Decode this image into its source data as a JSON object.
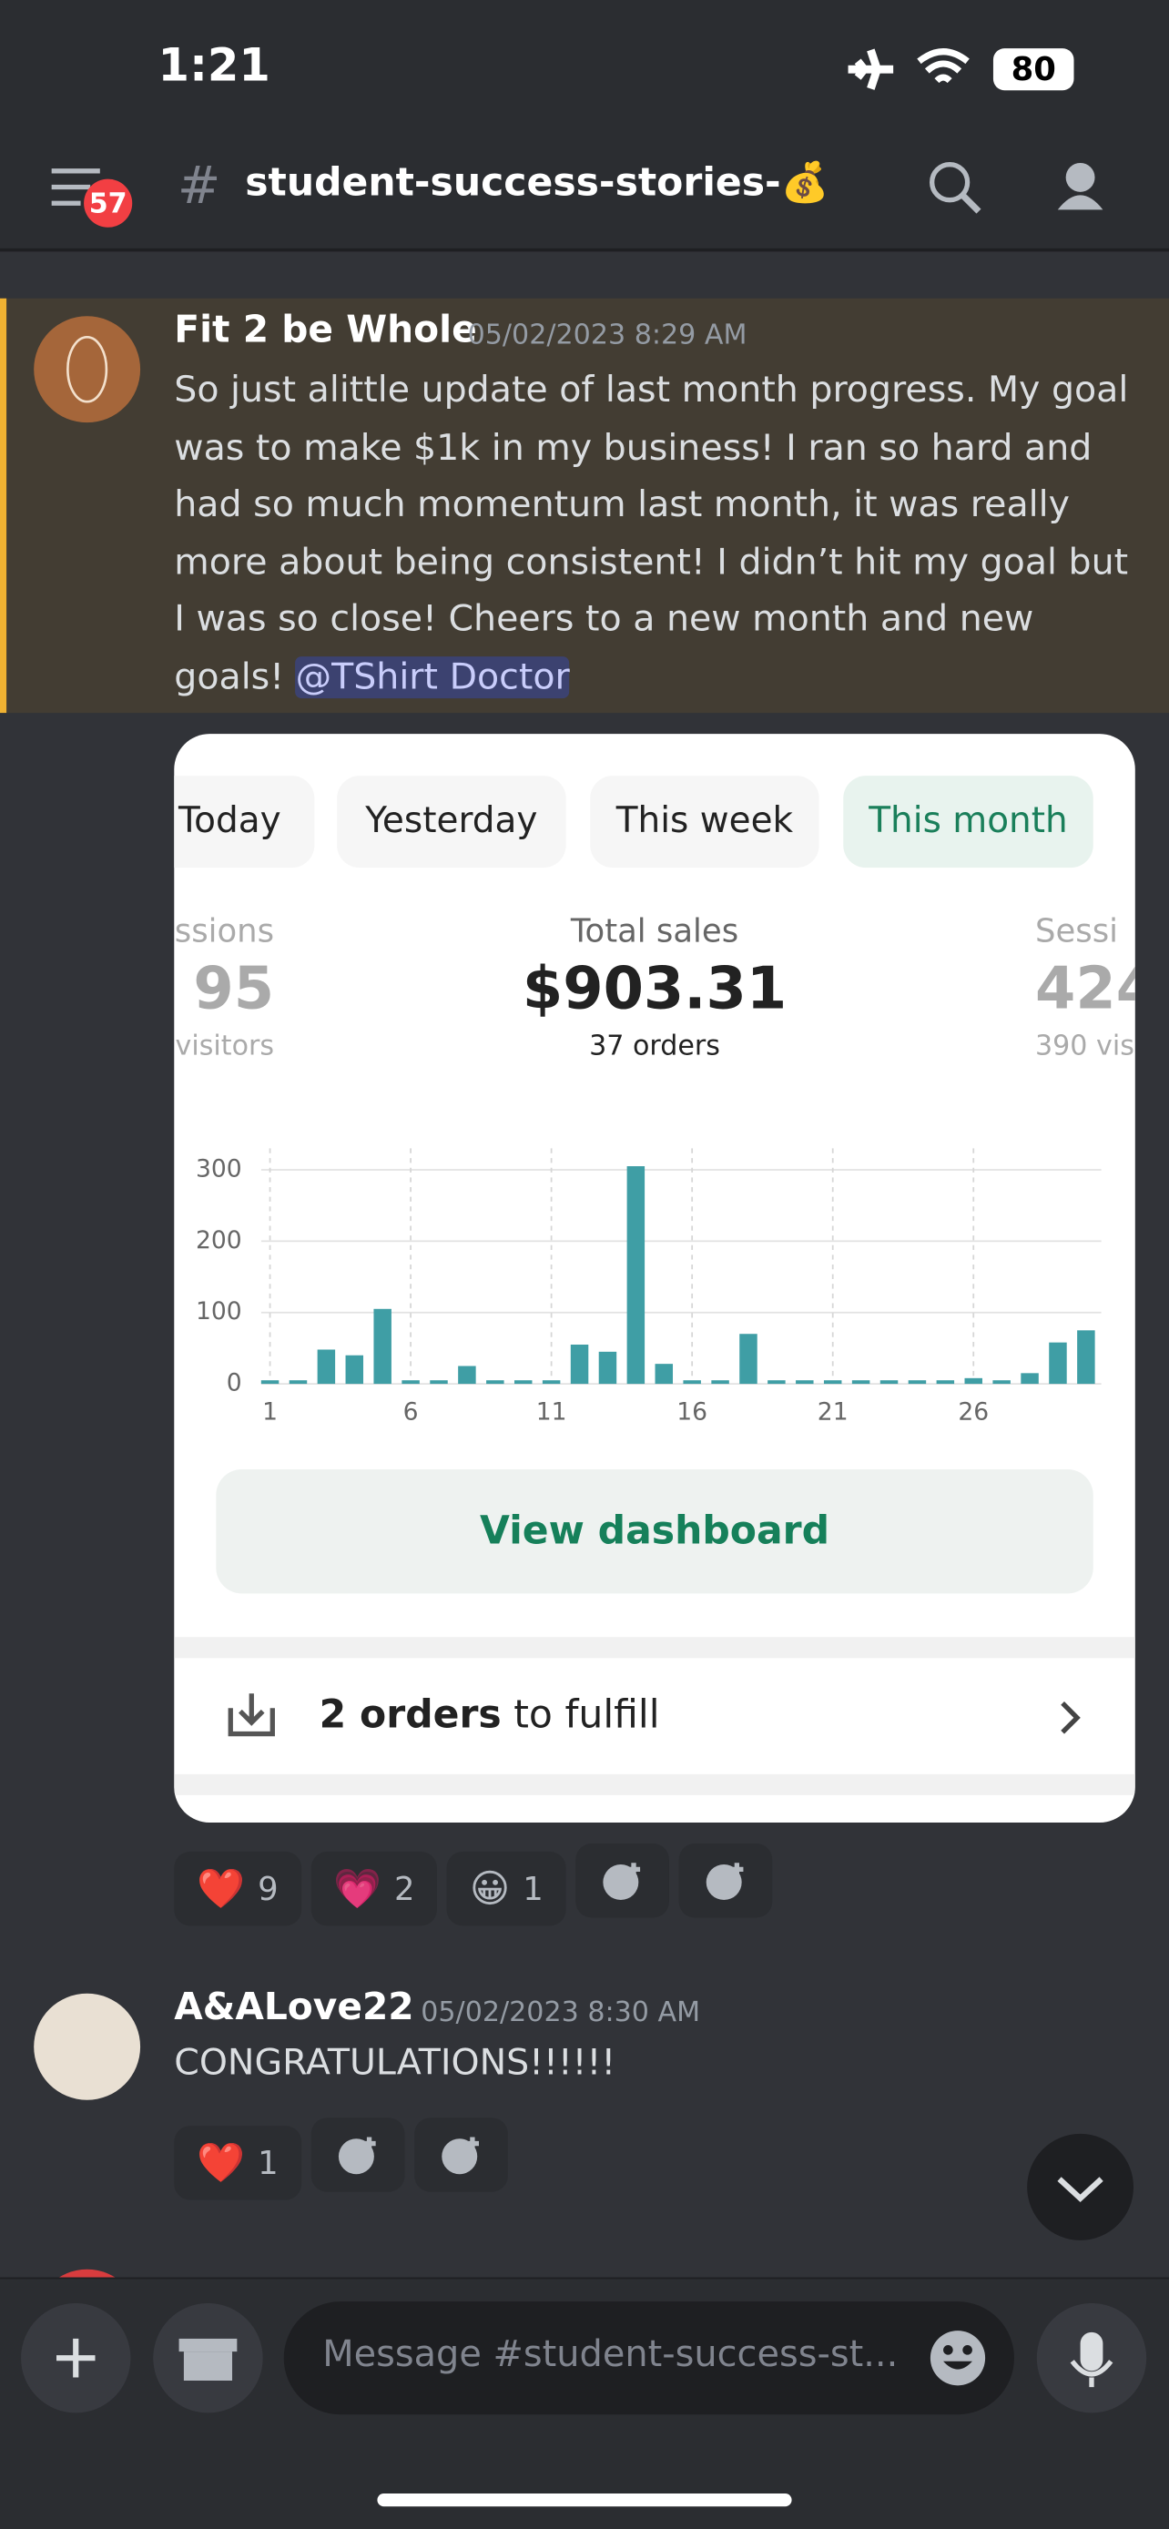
{
  "status_bar": {
    "time": "1:21",
    "battery": "80"
  },
  "header": {
    "badge": "57",
    "hash": "#",
    "channel": "student-success-stories-💰"
  },
  "messages": [
    {
      "author": "Fit 2 be Whole",
      "timestamp": "05/02/2023 8:29 AM",
      "text": "So just alittle update of last month progress. My goal was to make $1k in my business! I ran so hard and had so much momentum last month, it was really more about being consistent!  I didn’t hit my goal but I was so close! Cheers to a new month and new goals! ",
      "mention": "@TShirt Doctor",
      "reactions": [
        {
          "emoji": "❤️",
          "count": 9
        },
        {
          "emoji": "💗",
          "count": 2
        },
        {
          "emoji": "😀",
          "count": 1
        }
      ]
    },
    {
      "author": "A&ALove22",
      "timestamp": "05/02/2023 8:30 AM",
      "text": "CONGRATULATIONS!!!!!!",
      "reactions": [
        {
          "emoji": "❤️",
          "count": 1
        }
      ]
    }
  ],
  "card": {
    "tabs": [
      "Today",
      "Yesterday",
      "This week",
      "This month"
    ],
    "stats": [
      {
        "label": "ssions",
        "value": "95",
        "sub": "visitors"
      },
      {
        "label": "Total sales",
        "value": "$903.31",
        "sub": "37 orders"
      },
      {
        "label": "Sessi",
        "value": "424",
        "sub": "390 vis"
      }
    ],
    "chart_data": {
      "type": "bar",
      "color": "#3f9ea5",
      "grid": true,
      "x": [
        1,
        2,
        3,
        4,
        5,
        6,
        7,
        8,
        9,
        10,
        11,
        12,
        13,
        14,
        15,
        16,
        17,
        18,
        19,
        20,
        21,
        22,
        23,
        24,
        25,
        26,
        27,
        28,
        29,
        30
      ],
      "values": [
        5,
        5,
        48,
        40,
        105,
        5,
        5,
        25,
        5,
        5,
        5,
        55,
        45,
        305,
        28,
        5,
        5,
        70,
        5,
        5,
        5,
        5,
        5,
        5,
        5,
        8,
        5,
        15,
        58,
        75
      ],
      "xlim": [
        0,
        31
      ],
      "xticks": [
        1,
        6,
        11,
        16,
        21,
        26
      ],
      "ylim": [
        0,
        330
      ],
      "yticks": [
        0,
        100,
        200,
        300
      ]
    },
    "button": "View dashboard",
    "fulfill_bold": "2 orders",
    "fulfill_rest": "to fulfill"
  },
  "composer": {
    "placeholder": "Message #student-success-st..."
  }
}
